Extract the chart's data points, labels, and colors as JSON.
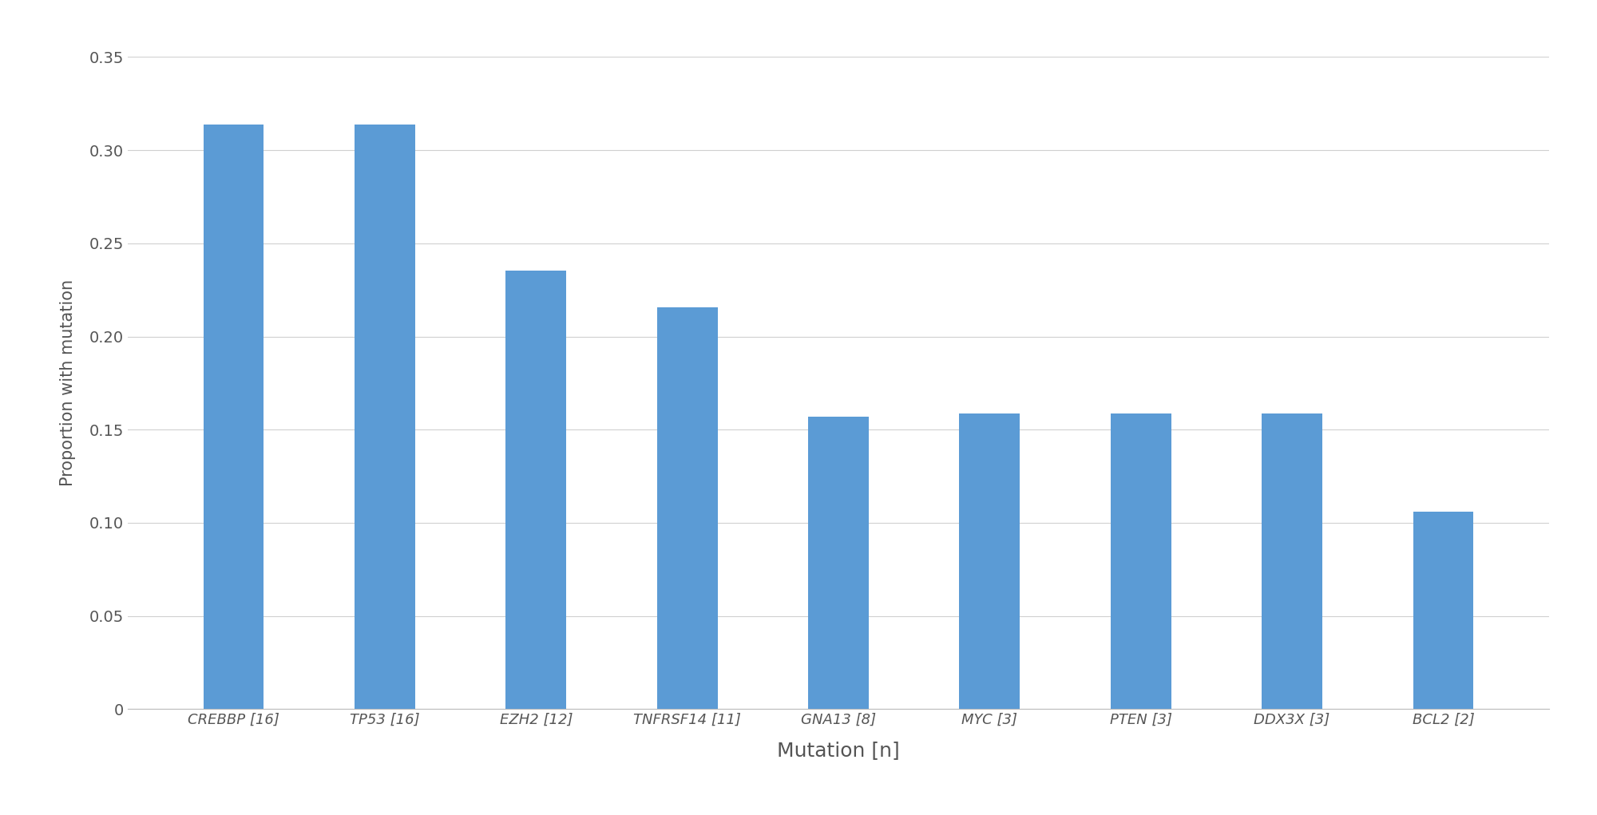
{
  "categories": [
    "CREBBP [16]",
    "TP53 [16]",
    "EZH2 [12]",
    "TNFRSF14 [11]",
    "GNA13 [8]",
    "MYC [3]",
    "PTEN [3]",
    "DDX3X [3]",
    "BCL2 [2]"
  ],
  "values": [
    0.3137,
    0.3137,
    0.2353,
    0.2157,
    0.1569,
    0.1588,
    0.1588,
    0.1588,
    0.1059
  ],
  "bar_color": "#5b9bd5",
  "xlabel": "Mutation [n]",
  "ylabel": "Proportion with mutation",
  "ylim": [
    0,
    0.35
  ],
  "yticks": [
    0,
    0.05,
    0.1,
    0.15,
    0.2,
    0.25,
    0.3,
    0.35
  ],
  "background_color": "#ffffff",
  "grid_color": "#d0d0d0",
  "bar_width": 0.4,
  "xlabel_fontsize": 18,
  "ylabel_fontsize": 15,
  "xtick_fontsize": 13,
  "ytick_fontsize": 14
}
